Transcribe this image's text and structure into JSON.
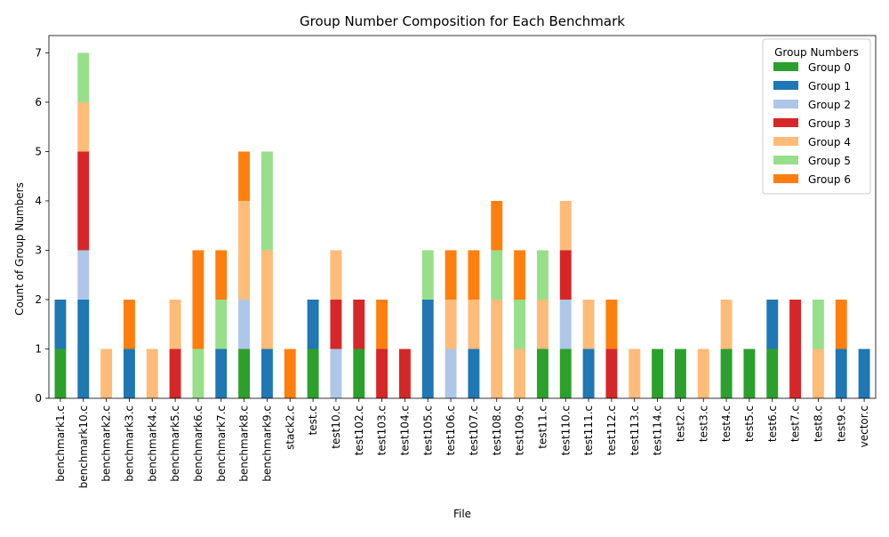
{
  "chart_data": {
    "type": "bar",
    "stacked": true,
    "title": "Group Number Composition for Each Benchmark",
    "xlabel": "File",
    "ylabel": "Count of Group Numbers",
    "ylim": [
      0,
      7.35
    ],
    "yticks": [
      0,
      1,
      2,
      3,
      4,
      5,
      6,
      7
    ],
    "grid": false,
    "legend_title": "Group Numbers",
    "legend_position": "top-right",
    "categories": [
      "benchmark1.c",
      "benchmark10.c",
      "benchmark2.c",
      "benchmark3.c",
      "benchmark4.c",
      "benchmark5.c",
      "benchmark6.c",
      "benchmark7.c",
      "benchmark8.c",
      "benchmark9.c",
      "stack2.c",
      "test.c",
      "test10.c",
      "test102.c",
      "test103.c",
      "test104.c",
      "test105.c",
      "test106.c",
      "test107.c",
      "test108.c",
      "test109.c",
      "test11.c",
      "test110.c",
      "test111.c",
      "test112.c",
      "test113.c",
      "test114.c",
      "test2.c",
      "test3.c",
      "test4.c",
      "test5.c",
      "test6.c",
      "test7.c",
      "test8.c",
      "test9.c",
      "vector.c"
    ],
    "series": [
      {
        "name": "Group 0",
        "color": "#2ca02c",
        "values": [
          1,
          0,
          0,
          0,
          0,
          0,
          0,
          0,
          1,
          0,
          0,
          1,
          0,
          1,
          0,
          0,
          0,
          0,
          0,
          0,
          0,
          1,
          1,
          0,
          0,
          0,
          1,
          1,
          0,
          1,
          1,
          1,
          0,
          0,
          0,
          0
        ]
      },
      {
        "name": "Group 1",
        "color": "#1f77b4",
        "values": [
          1,
          2,
          0,
          1,
          0,
          0,
          0,
          1,
          0,
          1,
          0,
          1,
          0,
          0,
          0,
          0,
          2,
          0,
          1,
          0,
          0,
          0,
          0,
          1,
          0,
          0,
          0,
          0,
          0,
          0,
          0,
          1,
          0,
          0,
          1,
          1
        ]
      },
      {
        "name": "Group 2",
        "color": "#aec7e8",
        "values": [
          0,
          1,
          0,
          0,
          0,
          0,
          0,
          0,
          1,
          0,
          0,
          0,
          1,
          0,
          0,
          0,
          0,
          1,
          0,
          0,
          0,
          0,
          1,
          0,
          0,
          0,
          0,
          0,
          0,
          0,
          0,
          0,
          0,
          0,
          0,
          0
        ]
      },
      {
        "name": "Group 3",
        "color": "#d62728",
        "values": [
          0,
          2,
          0,
          0,
          0,
          1,
          0,
          0,
          0,
          0,
          0,
          0,
          1,
          1,
          1,
          1,
          0,
          0,
          0,
          0,
          0,
          0,
          1,
          0,
          1,
          0,
          0,
          0,
          0,
          0,
          0,
          0,
          2,
          0,
          0,
          0
        ]
      },
      {
        "name": "Group 4",
        "color": "#ffbb78",
        "values": [
          0,
          1,
          1,
          0,
          1,
          1,
          0,
          0,
          2,
          2,
          0,
          0,
          1,
          0,
          0,
          0,
          0,
          1,
          1,
          2,
          1,
          1,
          1,
          1,
          0,
          1,
          0,
          0,
          1,
          1,
          0,
          0,
          0,
          1,
          0,
          0
        ]
      },
      {
        "name": "Group 5",
        "color": "#98df8a",
        "values": [
          0,
          1,
          0,
          0,
          0,
          0,
          1,
          1,
          0,
          2,
          0,
          0,
          0,
          0,
          0,
          0,
          1,
          0,
          0,
          1,
          1,
          1,
          0,
          0,
          0,
          0,
          0,
          0,
          0,
          0,
          0,
          0,
          0,
          1,
          0,
          0
        ]
      },
      {
        "name": "Group 6",
        "color": "#ff7f0e",
        "values": [
          0,
          0,
          0,
          1,
          0,
          0,
          2,
          1,
          1,
          0,
          1,
          0,
          0,
          0,
          1,
          0,
          0,
          1,
          1,
          1,
          1,
          0,
          0,
          0,
          1,
          0,
          0,
          0,
          0,
          0,
          0,
          0,
          0,
          0,
          1,
          0
        ]
      }
    ]
  }
}
